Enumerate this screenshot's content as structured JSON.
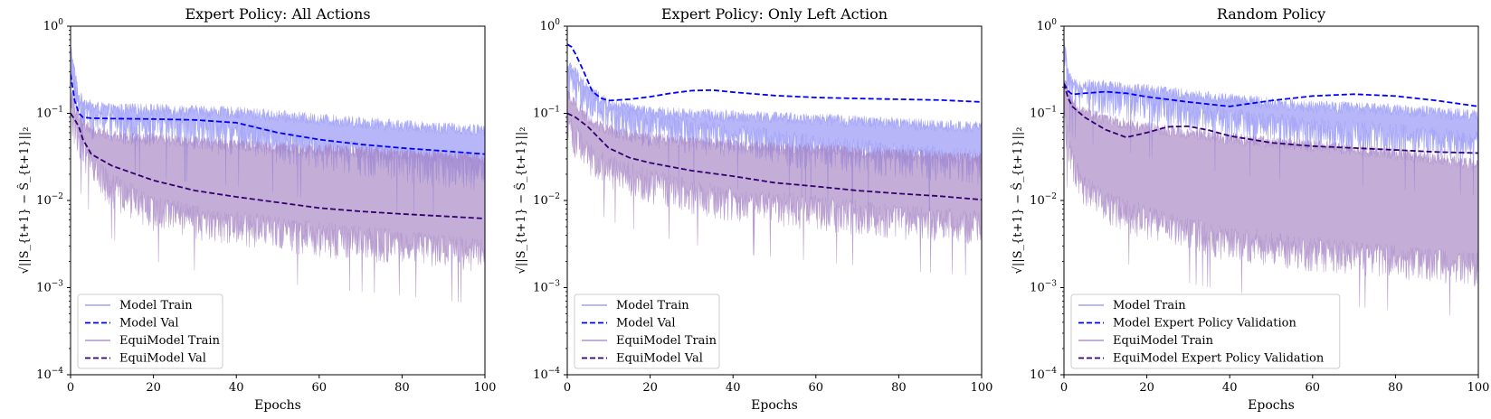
{
  "colors": {
    "model_train": "#8f8ff5",
    "model_val": "#0000ff",
    "equi_train": "#a583c3",
    "equi_val": "#33006f",
    "axes": "#000000",
    "legend_border": "#cccccc"
  },
  "chart_data": [
    {
      "type": "line",
      "title": "Expert Policy: All Actions",
      "xlabel": "Epochs",
      "ylabel": "√||S_{t+1} − Ŝ_{t+1}||₂",
      "xlim": [
        0,
        100
      ],
      "ylim": [
        0.0001,
        1
      ],
      "yscale": "log",
      "xticks": [
        "0",
        "20",
        "40",
        "60",
        "80",
        "100"
      ],
      "yticks": [
        {
          "base": "10",
          "exp": "0"
        },
        {
          "base": "10",
          "exp": "−1"
        },
        {
          "base": "10",
          "exp": "−2"
        },
        {
          "base": "10",
          "exp": "−3"
        },
        {
          "base": "10",
          "exp": "−4"
        }
      ],
      "grid": false,
      "legend_position": "lower-left",
      "series": [
        {
          "name": "Model Train",
          "style": "band",
          "x": [
            0,
            1,
            2,
            5,
            10,
            20,
            40,
            60,
            80,
            100
          ],
          "upper": [
            0.65,
            0.35,
            0.18,
            0.14,
            0.13,
            0.13,
            0.12,
            0.1,
            0.085,
            0.075
          ],
          "lower": [
            0.2,
            0.1,
            0.07,
            0.05,
            0.045,
            0.04,
            0.032,
            0.022,
            0.016,
            0.012
          ]
        },
        {
          "name": "Model Val",
          "style": "dashed",
          "x": [
            0,
            1,
            2,
            3,
            5,
            10,
            20,
            30,
            40,
            50,
            60,
            70,
            80,
            90,
            100
          ],
          "y": [
            0.28,
            0.14,
            0.1,
            0.09,
            0.088,
            0.087,
            0.086,
            0.084,
            0.078,
            0.06,
            0.05,
            0.044,
            0.04,
            0.037,
            0.034
          ]
        },
        {
          "name": "EquiModel Train",
          "style": "band",
          "x": [
            0,
            2,
            5,
            10,
            15,
            20,
            30,
            40,
            60,
            80,
            100
          ],
          "upper": [
            0.2,
            0.1,
            0.075,
            0.065,
            0.06,
            0.06,
            0.055,
            0.05,
            0.045,
            0.04,
            0.035
          ],
          "lower": [
            0.06,
            0.03,
            0.015,
            0.008,
            0.006,
            0.0045,
            0.0035,
            0.003,
            0.0022,
            0.0018,
            0.0014
          ]
        },
        {
          "name": "EquiModel Val",
          "style": "dashed",
          "x": [
            0,
            1,
            2,
            3,
            5,
            10,
            20,
            30,
            40,
            50,
            60,
            70,
            80,
            90,
            100
          ],
          "y": [
            0.1,
            0.085,
            0.07,
            0.05,
            0.034,
            0.025,
            0.017,
            0.013,
            0.011,
            0.0095,
            0.0082,
            0.0075,
            0.007,
            0.0066,
            0.0062
          ]
        }
      ]
    },
    {
      "type": "line",
      "title": "Expert Policy: Only Left Action",
      "xlabel": "Epochs",
      "ylabel": "√||S_{t+1} − Ŝ_{t+1}||₂",
      "xlim": [
        0,
        100
      ],
      "ylim": [
        0.0001,
        1
      ],
      "yscale": "log",
      "xticks": [
        "0",
        "20",
        "40",
        "60",
        "80",
        "100"
      ],
      "yticks": [
        {
          "base": "10",
          "exp": "0"
        },
        {
          "base": "10",
          "exp": "−1"
        },
        {
          "base": "10",
          "exp": "−2"
        },
        {
          "base": "10",
          "exp": "−3"
        },
        {
          "base": "10",
          "exp": "−4"
        }
      ],
      "grid": false,
      "legend_position": "lower-left",
      "series": [
        {
          "name": "Model Train",
          "style": "band",
          "x": [
            0,
            2,
            5,
            10,
            20,
            40,
            60,
            80,
            100
          ],
          "upper": [
            0.42,
            0.35,
            0.22,
            0.15,
            0.12,
            0.11,
            0.1,
            0.09,
            0.08
          ],
          "lower": [
            0.15,
            0.1,
            0.07,
            0.05,
            0.04,
            0.03,
            0.022,
            0.018,
            0.015
          ]
        },
        {
          "name": "Model Val",
          "style": "dashed",
          "x": [
            0,
            1,
            2,
            4,
            6,
            8,
            10,
            15,
            20,
            25,
            30,
            35,
            40,
            50,
            60,
            70,
            80,
            90,
            100
          ],
          "y": [
            0.62,
            0.58,
            0.48,
            0.3,
            0.18,
            0.15,
            0.14,
            0.145,
            0.155,
            0.17,
            0.182,
            0.185,
            0.175,
            0.16,
            0.152,
            0.148,
            0.145,
            0.142,
            0.135
          ]
        },
        {
          "name": "EquiModel Train",
          "style": "band",
          "x": [
            0,
            2,
            5,
            10,
            20,
            30,
            40,
            60,
            80,
            100
          ],
          "upper": [
            0.2,
            0.15,
            0.1,
            0.075,
            0.06,
            0.055,
            0.05,
            0.045,
            0.04,
            0.035
          ],
          "lower": [
            0.04,
            0.03,
            0.02,
            0.013,
            0.009,
            0.007,
            0.0055,
            0.0045,
            0.0035,
            0.003
          ]
        },
        {
          "name": "EquiModel Val",
          "style": "dashed",
          "x": [
            0,
            2,
            5,
            8,
            10,
            15,
            20,
            30,
            40,
            50,
            60,
            70,
            80,
            90,
            100
          ],
          "y": [
            0.1,
            0.09,
            0.07,
            0.05,
            0.04,
            0.031,
            0.027,
            0.022,
            0.019,
            0.016,
            0.0145,
            0.013,
            0.012,
            0.0112,
            0.0102
          ]
        }
      ]
    },
    {
      "type": "line",
      "title": "Random Policy",
      "xlabel": "Epochs",
      "ylabel": "√||S_{t+1} − Ŝ_{t+1}||₂",
      "xlim": [
        0,
        100
      ],
      "ylim": [
        0.0001,
        1
      ],
      "yscale": "log",
      "xticks": [
        "0",
        "20",
        "40",
        "60",
        "80",
        "100"
      ],
      "yticks": [
        {
          "base": "10",
          "exp": "0"
        },
        {
          "base": "10",
          "exp": "−1"
        },
        {
          "base": "10",
          "exp": "−2"
        },
        {
          "base": "10",
          "exp": "−3"
        },
        {
          "base": "10",
          "exp": "−4"
        }
      ],
      "grid": false,
      "legend_position": "lower-left",
      "series": [
        {
          "name": "Model Train",
          "style": "band",
          "x": [
            0,
            1,
            2,
            5,
            10,
            20,
            30,
            40,
            60,
            80,
            100
          ],
          "upper": [
            0.8,
            0.35,
            0.25,
            0.25,
            0.24,
            0.22,
            0.19,
            0.17,
            0.14,
            0.13,
            0.11
          ],
          "lower": [
            0.25,
            0.15,
            0.12,
            0.1,
            0.09,
            0.07,
            0.055,
            0.045,
            0.035,
            0.03,
            0.025
          ]
        },
        {
          "name": "Model Expert Policy Validation",
          "style": "dashed",
          "x": [
            0,
            1,
            2,
            5,
            10,
            15,
            20,
            30,
            40,
            50,
            60,
            70,
            80,
            90,
            100
          ],
          "y": [
            0.22,
            0.18,
            0.165,
            0.17,
            0.177,
            0.17,
            0.155,
            0.135,
            0.12,
            0.14,
            0.158,
            0.166,
            0.158,
            0.14,
            0.12
          ]
        },
        {
          "name": "EquiModel Train",
          "style": "band",
          "x": [
            0,
            2,
            5,
            10,
            20,
            30,
            40,
            60,
            80,
            100
          ],
          "upper": [
            0.3,
            0.15,
            0.12,
            0.1,
            0.08,
            0.07,
            0.06,
            0.05,
            0.04,
            0.03
          ],
          "lower": [
            0.05,
            0.015,
            0.008,
            0.005,
            0.0035,
            0.0025,
            0.002,
            0.0015,
            0.0012,
            0.001
          ]
        },
        {
          "name": "EquiModel Expert Policy Validation",
          "style": "dashed",
          "x": [
            0,
            1,
            2,
            5,
            10,
            15,
            20,
            25,
            30,
            35,
            40,
            50,
            60,
            70,
            80,
            90,
            100
          ],
          "y": [
            0.22,
            0.15,
            0.12,
            0.09,
            0.065,
            0.053,
            0.06,
            0.07,
            0.071,
            0.064,
            0.055,
            0.046,
            0.042,
            0.04,
            0.038,
            0.036,
            0.035
          ]
        }
      ]
    }
  ]
}
